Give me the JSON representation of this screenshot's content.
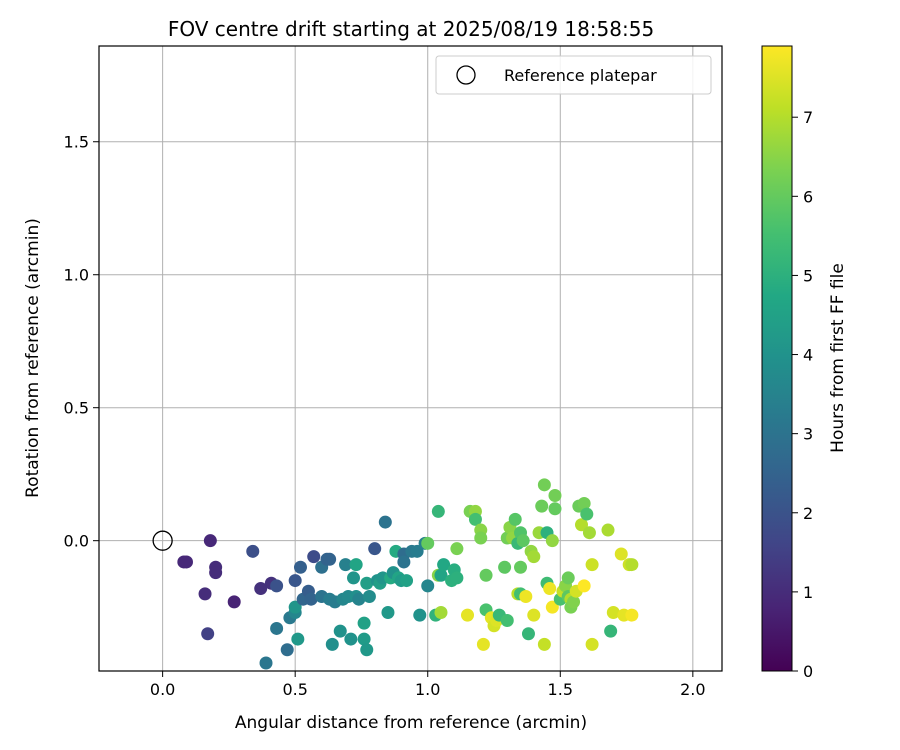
{
  "chart_data": {
    "type": "scatter",
    "title": "FOV centre drift starting at 2025/08/19 18:58:55",
    "xlabel": "Angular distance from reference (arcmin)",
    "ylabel": "Rotation from reference (arcmin)",
    "xlim": [
      -0.24,
      2.11
    ],
    "ylim": [
      -0.49,
      1.86
    ],
    "x_ticks": [
      0.0,
      0.5,
      1.0,
      1.5,
      2.0
    ],
    "x_tick_labels": [
      "0.0",
      "0.5",
      "1.0",
      "1.5",
      "2.0"
    ],
    "y_ticks": [
      0.0,
      0.5,
      1.0,
      1.5
    ],
    "y_tick_labels": [
      "0.0",
      "0.5",
      "1.0",
      "1.5"
    ],
    "grid": true,
    "legend": {
      "placement": "top-right",
      "entries": [
        {
          "label": "Reference platepar",
          "marker": "open-circle"
        }
      ]
    },
    "reference_point": {
      "x": 0.0,
      "y": 0.0
    },
    "colorbar": {
      "label": "Hours from first FF file",
      "colormap": "viridis",
      "range": [
        0,
        7.9
      ],
      "ticks": [
        0,
        1,
        2,
        3,
        4,
        5,
        6,
        7
      ],
      "tick_labels": [
        "0",
        "1",
        "2",
        "3",
        "4",
        "5",
        "6",
        "7"
      ]
    },
    "points": [
      {
        "x": 0.08,
        "y": -0.08,
        "h": 0.9
      },
      {
        "x": 0.09,
        "y": -0.08,
        "h": 0.9
      },
      {
        "x": 0.18,
        "y": 0.0,
        "h": 0.9
      },
      {
        "x": 0.2,
        "y": -0.1,
        "h": 1.0
      },
      {
        "x": 0.2,
        "y": -0.12,
        "h": 1.0
      },
      {
        "x": 0.16,
        "y": -0.2,
        "h": 1.0
      },
      {
        "x": 0.27,
        "y": -0.23,
        "h": 0.8
      },
      {
        "x": 0.17,
        "y": -0.35,
        "h": 1.5
      },
      {
        "x": 0.34,
        "y": -0.04,
        "h": 1.9
      },
      {
        "x": 0.37,
        "y": -0.18,
        "h": 1.1
      },
      {
        "x": 0.41,
        "y": -0.16,
        "h": 1.1
      },
      {
        "x": 0.43,
        "y": -0.17,
        "h": 2.0
      },
      {
        "x": 0.39,
        "y": -0.46,
        "h": 3.1
      },
      {
        "x": 0.43,
        "y": -0.33,
        "h": 3.1
      },
      {
        "x": 0.47,
        "y": -0.41,
        "h": 2.8
      },
      {
        "x": 0.48,
        "y": -0.29,
        "h": 3.2
      },
      {
        "x": 0.5,
        "y": -0.27,
        "h": 3.6
      },
      {
        "x": 0.5,
        "y": -0.25,
        "h": 4.1
      },
      {
        "x": 0.51,
        "y": -0.37,
        "h": 4.2
      },
      {
        "x": 0.5,
        "y": -0.15,
        "h": 2.1
      },
      {
        "x": 0.52,
        "y": -0.1,
        "h": 2.4
      },
      {
        "x": 0.53,
        "y": -0.22,
        "h": 2.6
      },
      {
        "x": 0.55,
        "y": -0.19,
        "h": 2.3
      },
      {
        "x": 0.56,
        "y": -0.22,
        "h": 2.5
      },
      {
        "x": 0.57,
        "y": -0.06,
        "h": 1.8
      },
      {
        "x": 0.6,
        "y": -0.1,
        "h": 2.9
      },
      {
        "x": 0.6,
        "y": -0.21,
        "h": 3.0
      },
      {
        "x": 0.62,
        "y": -0.07,
        "h": 2.5
      },
      {
        "x": 0.63,
        "y": -0.07,
        "h": 2.5
      },
      {
        "x": 0.63,
        "y": -0.22,
        "h": 3.3
      },
      {
        "x": 0.64,
        "y": -0.39,
        "h": 3.9
      },
      {
        "x": 0.65,
        "y": -0.23,
        "h": 3.3
      },
      {
        "x": 0.67,
        "y": -0.34,
        "h": 4.0
      },
      {
        "x": 0.68,
        "y": -0.22,
        "h": 3.6
      },
      {
        "x": 0.69,
        "y": -0.09,
        "h": 3.4
      },
      {
        "x": 0.7,
        "y": -0.21,
        "h": 3.7
      },
      {
        "x": 0.71,
        "y": -0.37,
        "h": 4.0
      },
      {
        "x": 0.72,
        "y": -0.14,
        "h": 4.1
      },
      {
        "x": 0.73,
        "y": -0.09,
        "h": 4.6
      },
      {
        "x": 0.73,
        "y": -0.21,
        "h": 3.9
      },
      {
        "x": 0.74,
        "y": -0.22,
        "h": 3.5
      },
      {
        "x": 0.76,
        "y": -0.37,
        "h": 4.3
      },
      {
        "x": 0.76,
        "y": -0.31,
        "h": 4.5
      },
      {
        "x": 0.77,
        "y": -0.41,
        "h": 4.2
      },
      {
        "x": 0.77,
        "y": -0.16,
        "h": 4.4
      },
      {
        "x": 0.78,
        "y": -0.21,
        "h": 3.8
      },
      {
        "x": 0.8,
        "y": -0.03,
        "h": 2.1
      },
      {
        "x": 0.81,
        "y": -0.15,
        "h": 4.0
      },
      {
        "x": 0.82,
        "y": -0.16,
        "h": 4.4
      },
      {
        "x": 0.83,
        "y": -0.14,
        "h": 4.1
      },
      {
        "x": 0.84,
        "y": 0.07,
        "h": 3.0
      },
      {
        "x": 0.85,
        "y": -0.27,
        "h": 4.2
      },
      {
        "x": 0.86,
        "y": -0.14,
        "h": 4.8
      },
      {
        "x": 0.87,
        "y": -0.12,
        "h": 4.0
      },
      {
        "x": 0.88,
        "y": -0.04,
        "h": 4.8
      },
      {
        "x": 0.89,
        "y": -0.14,
        "h": 4.6
      },
      {
        "x": 0.9,
        "y": -0.15,
        "h": 4.3
      },
      {
        "x": 0.91,
        "y": -0.05,
        "h": 2.8
      },
      {
        "x": 0.91,
        "y": -0.08,
        "h": 3.0
      },
      {
        "x": 0.92,
        "y": -0.15,
        "h": 4.5
      },
      {
        "x": 0.94,
        "y": -0.04,
        "h": 3.2
      },
      {
        "x": 0.96,
        "y": -0.04,
        "h": 3.3
      },
      {
        "x": 0.97,
        "y": -0.28,
        "h": 4.0
      },
      {
        "x": 0.99,
        "y": -0.01,
        "h": 3.4
      },
      {
        "x": 1.0,
        "y": -0.01,
        "h": 6.0
      },
      {
        "x": 1.0,
        "y": -0.17,
        "h": 3.6
      },
      {
        "x": 1.03,
        "y": -0.28,
        "h": 5.1
      },
      {
        "x": 1.04,
        "y": 0.11,
        "h": 5.2
      },
      {
        "x": 1.04,
        "y": -0.13,
        "h": 6.5
      },
      {
        "x": 1.05,
        "y": -0.13,
        "h": 4.6
      },
      {
        "x": 1.05,
        "y": -0.27,
        "h": 6.8
      },
      {
        "x": 1.06,
        "y": -0.09,
        "h": 4.7
      },
      {
        "x": 1.09,
        "y": -0.15,
        "h": 5.0
      },
      {
        "x": 1.1,
        "y": -0.11,
        "h": 4.9
      },
      {
        "x": 1.11,
        "y": -0.03,
        "h": 6.3
      },
      {
        "x": 1.11,
        "y": -0.14,
        "h": 5.0
      },
      {
        "x": 1.15,
        "y": -0.28,
        "h": 7.6
      },
      {
        "x": 1.16,
        "y": 0.11,
        "h": 6.3
      },
      {
        "x": 1.18,
        "y": 0.11,
        "h": 6.6
      },
      {
        "x": 1.18,
        "y": 0.08,
        "h": 5.5
      },
      {
        "x": 1.2,
        "y": 0.04,
        "h": 6.5
      },
      {
        "x": 1.2,
        "y": 0.01,
        "h": 6.3
      },
      {
        "x": 1.21,
        "y": -0.39,
        "h": 7.6
      },
      {
        "x": 1.22,
        "y": -0.26,
        "h": 5.6
      },
      {
        "x": 1.22,
        "y": -0.13,
        "h": 6.0
      },
      {
        "x": 1.24,
        "y": -0.29,
        "h": 7.6
      },
      {
        "x": 1.25,
        "y": -0.32,
        "h": 7.4
      },
      {
        "x": 1.26,
        "y": -0.3,
        "h": 7.5
      },
      {
        "x": 1.27,
        "y": -0.28,
        "h": 5.3
      },
      {
        "x": 1.29,
        "y": -0.1,
        "h": 5.9
      },
      {
        "x": 1.3,
        "y": -0.3,
        "h": 5.5
      },
      {
        "x": 1.3,
        "y": 0.01,
        "h": 6.2
      },
      {
        "x": 1.31,
        "y": 0.05,
        "h": 6.5
      },
      {
        "x": 1.32,
        "y": 0.01,
        "h": 6.6
      },
      {
        "x": 1.33,
        "y": 0.08,
        "h": 5.8
      },
      {
        "x": 1.34,
        "y": -0.01,
        "h": 5.3
      },
      {
        "x": 1.34,
        "y": -0.2,
        "h": 7.1
      },
      {
        "x": 1.35,
        "y": 0.03,
        "h": 5.7
      },
      {
        "x": 1.35,
        "y": -0.2,
        "h": 5.5
      },
      {
        "x": 1.35,
        "y": -0.1,
        "h": 6.0
      },
      {
        "x": 1.36,
        "y": 0.0,
        "h": 5.9
      },
      {
        "x": 1.37,
        "y": -0.21,
        "h": 7.7
      },
      {
        "x": 1.38,
        "y": -0.35,
        "h": 5.2
      },
      {
        "x": 1.39,
        "y": -0.04,
        "h": 6.6
      },
      {
        "x": 1.4,
        "y": -0.06,
        "h": 6.8
      },
      {
        "x": 1.4,
        "y": -0.28,
        "h": 7.5
      },
      {
        "x": 1.42,
        "y": 0.03,
        "h": 6.7
      },
      {
        "x": 1.43,
        "y": 0.13,
        "h": 6.1
      },
      {
        "x": 1.44,
        "y": 0.21,
        "h": 6.2
      },
      {
        "x": 1.44,
        "y": -0.39,
        "h": 7.2
      },
      {
        "x": 1.45,
        "y": 0.03,
        "h": 5.0
      },
      {
        "x": 1.45,
        "y": -0.16,
        "h": 5.4
      },
      {
        "x": 1.46,
        "y": -0.18,
        "h": 7.7
      },
      {
        "x": 1.47,
        "y": 0.0,
        "h": 6.6
      },
      {
        "x": 1.47,
        "y": -0.25,
        "h": 7.8
      },
      {
        "x": 1.48,
        "y": 0.17,
        "h": 6.2
      },
      {
        "x": 1.48,
        "y": 0.12,
        "h": 6.0
      },
      {
        "x": 1.5,
        "y": -0.22,
        "h": 5.6
      },
      {
        "x": 1.51,
        "y": -0.19,
        "h": 7.2
      },
      {
        "x": 1.52,
        "y": -0.17,
        "h": 6.5
      },
      {
        "x": 1.53,
        "y": -0.14,
        "h": 6.1
      },
      {
        "x": 1.53,
        "y": -0.21,
        "h": 5.9
      },
      {
        "x": 1.54,
        "y": -0.22,
        "h": 7.0
      },
      {
        "x": 1.54,
        "y": -0.25,
        "h": 6.3
      },
      {
        "x": 1.55,
        "y": -0.23,
        "h": 6.4
      },
      {
        "x": 1.56,
        "y": -0.19,
        "h": 7.4
      },
      {
        "x": 1.57,
        "y": 0.13,
        "h": 6.1
      },
      {
        "x": 1.58,
        "y": 0.06,
        "h": 7.0
      },
      {
        "x": 1.59,
        "y": 0.14,
        "h": 6.2
      },
      {
        "x": 1.59,
        "y": -0.17,
        "h": 7.9
      },
      {
        "x": 1.6,
        "y": 0.1,
        "h": 5.6
      },
      {
        "x": 1.61,
        "y": 0.03,
        "h": 6.8
      },
      {
        "x": 1.62,
        "y": -0.09,
        "h": 7.3
      },
      {
        "x": 1.62,
        "y": -0.39,
        "h": 7.4
      },
      {
        "x": 1.68,
        "y": 0.04,
        "h": 6.9
      },
      {
        "x": 1.69,
        "y": -0.34,
        "h": 5.2
      },
      {
        "x": 1.7,
        "y": -0.27,
        "h": 7.4
      },
      {
        "x": 1.73,
        "y": -0.05,
        "h": 7.5
      },
      {
        "x": 1.74,
        "y": -0.28,
        "h": 7.6
      },
      {
        "x": 1.76,
        "y": -0.09,
        "h": 7.3
      },
      {
        "x": 1.77,
        "y": -0.09,
        "h": 7.0
      },
      {
        "x": 1.77,
        "y": -0.28,
        "h": 7.8
      }
    ]
  }
}
